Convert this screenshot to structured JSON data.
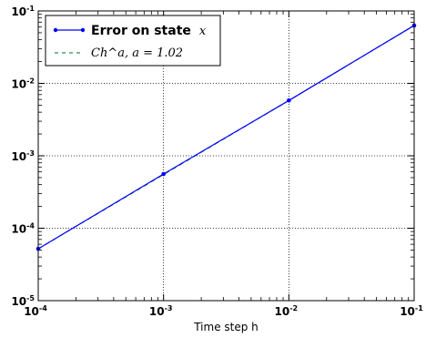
{
  "chart_data": {
    "type": "line",
    "xlabel": "Time step h",
    "ylabel": "",
    "xscale": "log",
    "yscale": "log",
    "xlim": [
      0.0001,
      0.1
    ],
    "ylim": [
      1e-05,
      0.1
    ],
    "grid": true,
    "legend_position": "top-left",
    "x_ticks": [
      {
        "base": "10",
        "exp": "-4",
        "value": 0.0001
      },
      {
        "base": "10",
        "exp": "-3",
        "value": 0.001
      },
      {
        "base": "10",
        "exp": "-2",
        "value": 0.01
      },
      {
        "base": "10",
        "exp": "-1",
        "value": 0.1
      }
    ],
    "y_ticks": [
      {
        "base": "10",
        "exp": "-5",
        "value": 1e-05
      },
      {
        "base": "10",
        "exp": "-4",
        "value": 0.0001
      },
      {
        "base": "10",
        "exp": "-3",
        "value": 0.001
      },
      {
        "base": "10",
        "exp": "-2",
        "value": 0.01
      },
      {
        "base": "10",
        "exp": "-1",
        "value": 0.1
      }
    ],
    "series": [
      {
        "name": "Error on state",
        "name_math": "x",
        "color": "#0000ff",
        "style": "solid",
        "marker": "dot",
        "x": [
          0.0001,
          0.001,
          0.01,
          0.1
        ],
        "y": [
          5.2e-05,
          0.00056,
          0.0058,
          0.063
        ]
      },
      {
        "name_math": "Ch^a,  a = 1.02",
        "color": "#2e8b57",
        "style": "dashed",
        "marker": "none",
        "x": [
          0.0001,
          0.001,
          0.01,
          0.1
        ],
        "y": [
          5.2e-05,
          0.00055,
          0.0058,
          0.063
        ]
      }
    ]
  }
}
